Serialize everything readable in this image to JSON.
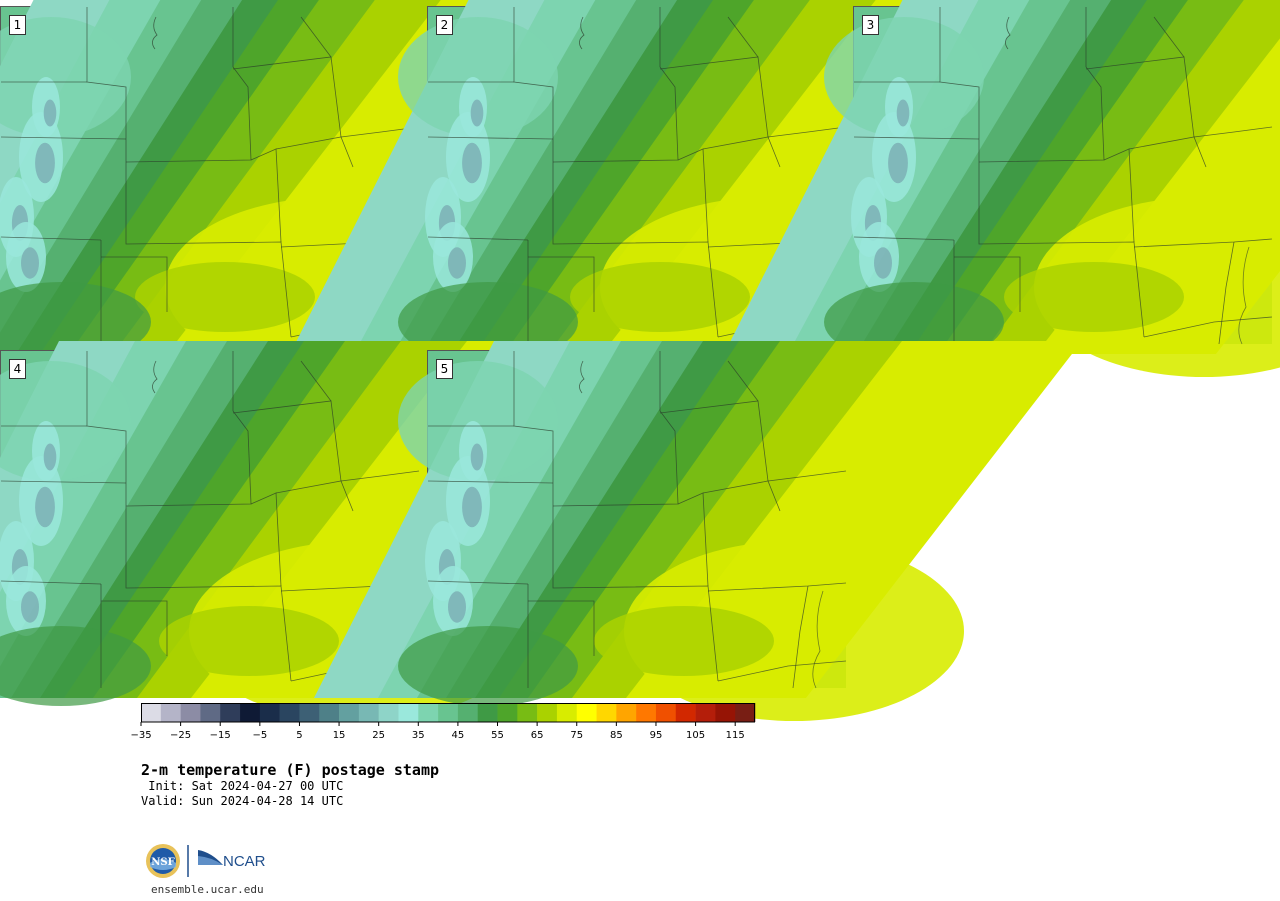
{
  "panels": [
    {
      "label": "1",
      "variant": 0
    },
    {
      "label": "2",
      "variant": 1
    },
    {
      "label": "3",
      "variant": 2
    },
    {
      "label": "4",
      "variant": 3
    },
    {
      "label": "5",
      "variant": 4
    }
  ],
  "colorbar": {
    "colors": [
      "#dcdce6",
      "#b4b4c8",
      "#8c8ca5",
      "#5f6a85",
      "#2f3d5a",
      "#0f1a35",
      "#1a2d4a",
      "#2a4560",
      "#3d6075",
      "#4e8088",
      "#63a0a0",
      "#78b8b4",
      "#8ed4c8",
      "#9ae8dc",
      "#7dd4b0",
      "#68c490",
      "#55b070",
      "#3f9a45",
      "#4ea52a",
      "#78bc14",
      "#aad200",
      "#d8ec00",
      "#ffff00",
      "#ffd700",
      "#ffa500",
      "#ff7800",
      "#f05000",
      "#d22800",
      "#b41e0a",
      "#961405",
      "#781e14"
    ],
    "tick_labels": [
      "−35",
      "−25",
      "−15",
      "−5",
      "5",
      "15",
      "25",
      "35",
      "45",
      "55",
      "65",
      "75",
      "85",
      "95",
      "105",
      "115"
    ]
  },
  "title": "2-m temperature (F) postage stamp",
  "init_line": " Init: Sat 2024-04-27 00 UTC",
  "valid_line": "Valid: Sun 2024-04-28 14 UTC",
  "logos": {
    "nsf": "NSF",
    "ncar": "NCAR"
  },
  "site": "ensemble.ucar.edu"
}
